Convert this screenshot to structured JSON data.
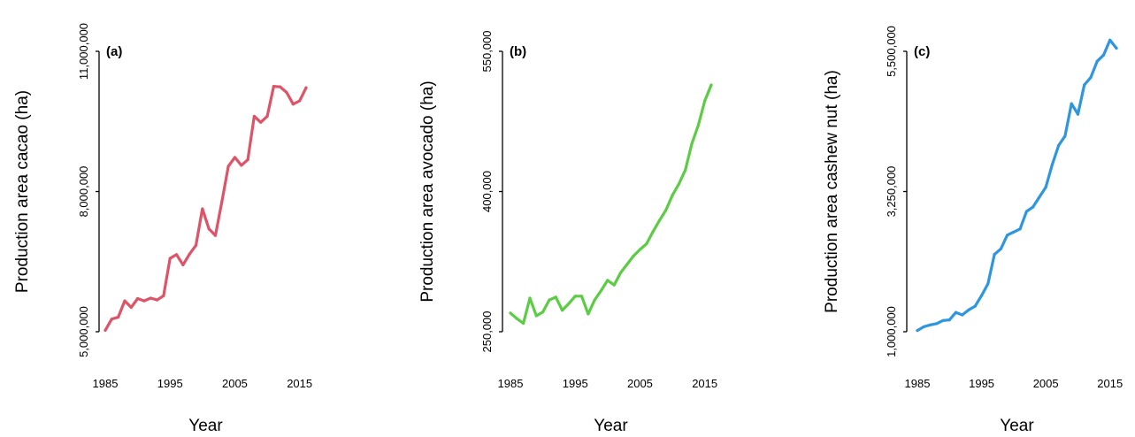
{
  "chart_data": [
    {
      "type": "line",
      "panel_label": "(a)",
      "xlabel": "Year",
      "ylabel": "Production area cacao (ha)",
      "xlim": [
        1985,
        2016
      ],
      "ylim": [
        5000000,
        11000000
      ],
      "x_ticks": [
        "1985",
        "1995",
        "2005",
        "2015"
      ],
      "y_ticks": [
        "5,000,000",
        "8,000,000",
        "11,000,000"
      ],
      "color": "#dd5468",
      "x": [
        1985,
        1986,
        1987,
        1988,
        1989,
        1990,
        1991,
        1992,
        1993,
        1994,
        1995,
        1996,
        1997,
        1998,
        1999,
        2000,
        2001,
        2002,
        2003,
        2004,
        2005,
        2006,
        2007,
        2008,
        2009,
        2010,
        2011,
        2012,
        2013,
        2014,
        2015,
        2016
      ],
      "values": [
        5030000,
        5270000,
        5310000,
        5660000,
        5520000,
        5710000,
        5660000,
        5720000,
        5680000,
        5770000,
        6570000,
        6650000,
        6430000,
        6660000,
        6850000,
        7630000,
        7200000,
        7060000,
        7780000,
        8540000,
        8730000,
        8560000,
        8680000,
        9610000,
        9480000,
        9610000,
        10250000,
        10240000,
        10120000,
        9870000,
        9940000,
        10220000
      ]
    },
    {
      "type": "line",
      "panel_label": "(b)",
      "xlabel": "Year",
      "ylabel": "Production area avocado (ha)",
      "xlim": [
        1985,
        2016
      ],
      "ylim": [
        250000,
        550000
      ],
      "x_ticks": [
        "1985",
        "1995",
        "2005",
        "2015"
      ],
      "y_ticks": [
        "250,000",
        "400,000",
        "550,000"
      ],
      "color": "#5ccc45",
      "x": [
        1985,
        1986,
        1987,
        1988,
        1989,
        1990,
        1991,
        1992,
        1993,
        1994,
        1995,
        1996,
        1997,
        1998,
        1999,
        2000,
        2001,
        2002,
        2003,
        2004,
        2005,
        2006,
        2007,
        2008,
        2009,
        2010,
        2011,
        2012,
        2013,
        2014,
        2015,
        2016
      ],
      "values": [
        270000,
        264000,
        259000,
        286000,
        267000,
        271000,
        284000,
        287000,
        273000,
        280000,
        288000,
        288000,
        269000,
        284000,
        294000,
        305000,
        300000,
        313000,
        322000,
        331000,
        338000,
        344000,
        357000,
        369000,
        380000,
        396000,
        408000,
        423000,
        451000,
        471000,
        497000,
        514000
      ]
    },
    {
      "type": "line",
      "panel_label": "(c)",
      "xlabel": "Year",
      "ylabel": "Production area cashew nut (ha)",
      "xlim": [
        1985,
        2016
      ],
      "ylim": [
        1000000,
        5500000
      ],
      "x_ticks": [
        "1985",
        "1995",
        "2005",
        "2015"
      ],
      "y_ticks": [
        "1,000,000",
        "3,250,000",
        "5,500,000"
      ],
      "color": "#2f96de",
      "x": [
        1985,
        1986,
        1987,
        1988,
        1989,
        1990,
        1991,
        1992,
        1993,
        1994,
        1995,
        1996,
        1997,
        1998,
        1999,
        2000,
        2001,
        2002,
        2003,
        2004,
        2005,
        2006,
        2007,
        2008,
        2009,
        2010,
        2011,
        2012,
        2013,
        2014,
        2015,
        2016
      ],
      "values": [
        1020000,
        1080000,
        1110000,
        1130000,
        1180000,
        1190000,
        1310000,
        1270000,
        1350000,
        1410000,
        1580000,
        1770000,
        2240000,
        2330000,
        2550000,
        2600000,
        2650000,
        2930000,
        3000000,
        3160000,
        3320000,
        3680000,
        3990000,
        4140000,
        4660000,
        4490000,
        4960000,
        5080000,
        5340000,
        5440000,
        5680000,
        5550000
      ]
    }
  ]
}
